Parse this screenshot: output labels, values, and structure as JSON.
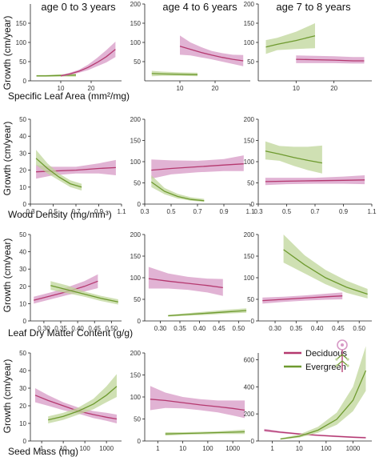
{
  "colors": {
    "deciduous": "#b5396f",
    "deciduous_fill": "#d79ac6",
    "evergreen": "#6e9a2f",
    "evergreen_fill": "#bfd69a"
  },
  "figure": {
    "column_titles": [
      "age 0 to 3 years",
      "age 4 to 6 years",
      "age 7 to 8 years"
    ],
    "y_axis_label": "Growth (cm/year)",
    "row_x_labels": [
      "Specific Leaf Area (mm²/mg)",
      "Wood Density (mg/mm³)",
      "Leaf Dry Matter Content (g/g)",
      "Seed Mass (mg)"
    ],
    "legend": {
      "position": "inside bottom-right panel, top-left",
      "items": [
        {
          "label": "Deciduous",
          "color": "#b5396f"
        },
        {
          "label": "Evergreen",
          "color": "#6e9a2f"
        }
      ],
      "icon": "tree-icon"
    }
  },
  "chart_data": [
    {
      "type": "line",
      "row": 0,
      "col": 0,
      "xlim": [
        0,
        30
      ],
      "ylim": [
        0,
        200
      ],
      "yticks": [
        0,
        50,
        100,
        150
      ],
      "xticks": [
        10,
        20
      ],
      "xtick_labels": [
        "10",
        "20"
      ],
      "grid": false,
      "series": [
        {
          "name": "Evergreen",
          "x": [
            2,
            5,
            10,
            15
          ],
          "y": [
            13,
            13,
            14,
            15
          ],
          "lower": [
            11,
            11,
            11,
            11
          ],
          "upper": [
            15,
            15,
            17,
            19
          ]
        },
        {
          "name": "Deciduous",
          "x": [
            10,
            13,
            16,
            19,
            22,
            25,
            28
          ],
          "y": [
            13,
            18,
            25,
            35,
            48,
            63,
            82
          ],
          "lower": [
            11,
            15,
            21,
            28,
            38,
            48,
            62
          ],
          "upper": [
            15,
            21,
            29,
            42,
            60,
            80,
            102
          ]
        }
      ]
    },
    {
      "type": "line",
      "row": 0,
      "col": 1,
      "xlim": [
        0,
        30
      ],
      "ylim": [
        0,
        200
      ],
      "yticks": [
        50,
        100,
        150,
        200
      ],
      "xticks": [
        10,
        20
      ],
      "xtick_labels": [
        "10",
        "20"
      ],
      "grid": false,
      "series": [
        {
          "name": "Deciduous",
          "x": [
            10,
            13,
            16,
            19,
            22,
            25,
            28
          ],
          "y": [
            90,
            82,
            74,
            67,
            61,
            56,
            52
          ],
          "lower": [
            68,
            66,
            61,
            56,
            50,
            44,
            38
          ],
          "upper": [
            118,
            100,
            88,
            78,
            72,
            68,
            67
          ]
        },
        {
          "name": "Evergreen",
          "x": [
            2,
            5,
            10,
            15
          ],
          "y": [
            19,
            18,
            17,
            16
          ],
          "lower": [
            12,
            13,
            13,
            12
          ],
          "upper": [
            26,
            24,
            22,
            21
          ]
        }
      ]
    },
    {
      "type": "line",
      "row": 0,
      "col": 2,
      "xlim": [
        0,
        30
      ],
      "ylim": [
        0,
        200
      ],
      "yticks": [
        50,
        100,
        150,
        200
      ],
      "xticks": [
        10,
        20
      ],
      "xtick_labels": [
        "10",
        "20"
      ],
      "grid": false,
      "series": [
        {
          "name": "Evergreen",
          "x": [
            2,
            5,
            10,
            15
          ],
          "y": [
            88,
            95,
            105,
            117
          ],
          "lower": [
            70,
            80,
            83,
            85
          ],
          "upper": [
            106,
            112,
            128,
            150
          ]
        },
        {
          "name": "Deciduous",
          "x": [
            10,
            15,
            20,
            25,
            28
          ],
          "y": [
            56,
            55,
            54,
            52,
            52
          ],
          "lower": [
            46,
            46,
            46,
            45,
            45
          ],
          "upper": [
            66,
            65,
            64,
            62,
            62
          ]
        }
      ]
    },
    {
      "type": "line",
      "row": 1,
      "col": 0,
      "xlim": [
        0.3,
        1.1
      ],
      "ylim": [
        0,
        50
      ],
      "yticks": [
        0,
        10,
        20,
        30,
        40,
        50
      ],
      "xticks": [
        0.3,
        0.5,
        0.7,
        0.9,
        1.1
      ],
      "xtick_labels": [
        "0.3",
        "0.5",
        "0.7",
        "0.9",
        "1.1"
      ],
      "grid": false,
      "series": [
        {
          "name": "Deciduous",
          "x": [
            0.35,
            0.5,
            0.7,
            0.9,
            1.05
          ],
          "y": [
            19,
            19.5,
            20,
            21,
            21.5
          ],
          "lower": [
            15,
            17,
            18,
            18,
            17
          ],
          "upper": [
            23,
            22,
            22,
            24,
            26
          ]
        },
        {
          "name": "Evergreen",
          "x": [
            0.35,
            0.45,
            0.55,
            0.65,
            0.75
          ],
          "y": [
            27,
            21,
            16,
            12,
            10
          ],
          "lower": [
            23,
            18,
            14,
            10,
            8
          ],
          "upper": [
            32,
            24,
            18,
            14,
            12
          ]
        }
      ]
    },
    {
      "type": "line",
      "row": 1,
      "col": 1,
      "xlim": [
        0.3,
        1.1
      ],
      "ylim": [
        0,
        200
      ],
      "yticks": [
        0,
        50,
        100,
        150,
        200
      ],
      "xticks": [
        0.3,
        0.5,
        0.7,
        0.9,
        1.1
      ],
      "xtick_labels": [
        "0.3",
        "0.5",
        "0.7",
        "0.9",
        "1.1"
      ],
      "grid": false,
      "series": [
        {
          "name": "Deciduous",
          "x": [
            0.35,
            0.5,
            0.7,
            0.9,
            1.05
          ],
          "y": [
            80,
            84,
            88,
            92,
            95
          ],
          "lower": [
            60,
            70,
            75,
            78,
            78
          ],
          "upper": [
            105,
            103,
            102,
            106,
            115
          ]
        },
        {
          "name": "Evergreen",
          "x": [
            0.35,
            0.45,
            0.55,
            0.65,
            0.75
          ],
          "y": [
            52,
            30,
            18,
            11,
            8
          ],
          "lower": [
            40,
            23,
            13,
            8,
            5
          ],
          "upper": [
            68,
            38,
            24,
            16,
            12
          ]
        }
      ]
    },
    {
      "type": "line",
      "row": 1,
      "col": 2,
      "xlim": [
        0.3,
        1.1
      ],
      "ylim": [
        0,
        200
      ],
      "yticks": [
        0,
        50,
        100,
        150,
        200
      ],
      "xticks": [
        0.3,
        0.5,
        0.7,
        0.9,
        1.1
      ],
      "xtick_labels": [
        "0.3",
        "0.5",
        "0.7",
        "0.9",
        "1.1"
      ],
      "grid": false,
      "series": [
        {
          "name": "Evergreen",
          "x": [
            0.35,
            0.45,
            0.55,
            0.65,
            0.75
          ],
          "y": [
            125,
            118,
            110,
            103,
            97
          ],
          "lower": [
            105,
            102,
            90,
            80,
            72
          ],
          "upper": [
            148,
            137,
            135,
            135,
            138
          ]
        },
        {
          "name": "Deciduous",
          "x": [
            0.35,
            0.5,
            0.7,
            0.9,
            1.05
          ],
          "y": [
            53,
            54,
            55,
            56,
            57
          ],
          "lower": [
            45,
            47,
            48,
            48,
            47
          ],
          "upper": [
            62,
            62,
            62,
            65,
            68
          ]
        }
      ]
    },
    {
      "type": "line",
      "row": 2,
      "col": 0,
      "xlim": [
        0.26,
        0.53
      ],
      "ylim": [
        0,
        50
      ],
      "yticks": [
        0,
        10,
        20,
        30,
        40,
        50
      ],
      "xticks": [
        0.3,
        0.35,
        0.4,
        0.45,
        0.5
      ],
      "xtick_labels": [
        "0.30",
        "0.35",
        "0.40",
        "0.45",
        "0.50"
      ],
      "grid": false,
      "series": [
        {
          "name": "Deciduous",
          "x": [
            0.27,
            0.32,
            0.37,
            0.42,
            0.46
          ],
          "y": [
            12,
            14.5,
            17,
            20,
            23
          ],
          "lower": [
            10,
            12.5,
            15,
            17,
            19
          ],
          "upper": [
            14,
            16.5,
            19.5,
            23,
            27
          ]
        },
        {
          "name": "Evergreen",
          "x": [
            0.32,
            0.37,
            0.42,
            0.47,
            0.52
          ],
          "y": [
            20.5,
            18,
            15.5,
            13,
            11
          ],
          "lower": [
            18,
            16,
            14,
            11.5,
            9.5
          ],
          "upper": [
            23,
            20.5,
            17,
            14.5,
            12.5
          ]
        }
      ]
    },
    {
      "type": "line",
      "row": 2,
      "col": 1,
      "xlim": [
        0.26,
        0.53
      ],
      "ylim": [
        0,
        200
      ],
      "yticks": [
        0,
        50,
        100,
        150,
        200
      ],
      "xticks": [
        0.3,
        0.35,
        0.4,
        0.45,
        0.5
      ],
      "xtick_labels": [
        "0.30",
        "0.35",
        "0.40",
        "0.45",
        "0.50"
      ],
      "grid": false,
      "series": [
        {
          "name": "Deciduous",
          "x": [
            0.27,
            0.32,
            0.37,
            0.42,
            0.46
          ],
          "y": [
            98,
            92,
            87,
            82,
            77
          ],
          "lower": [
            75,
            75,
            72,
            66,
            58
          ],
          "upper": [
            125,
            110,
            102,
            98,
            97
          ]
        },
        {
          "name": "Evergreen",
          "x": [
            0.32,
            0.37,
            0.42,
            0.47,
            0.52
          ],
          "y": [
            12,
            15,
            18,
            21,
            24
          ],
          "lower": [
            10,
            12,
            14,
            17,
            19
          ],
          "upper": [
            14,
            18,
            22,
            26,
            29
          ]
        }
      ]
    },
    {
      "type": "line",
      "row": 2,
      "col": 2,
      "xlim": [
        0.26,
        0.53
      ],
      "ylim": [
        0,
        200
      ],
      "yticks": [
        0,
        50,
        100,
        150,
        200
      ],
      "xticks": [
        0.3,
        0.35,
        0.4,
        0.45,
        0.5
      ],
      "xtick_labels": [
        "0.30",
        "0.35",
        "0.40",
        "0.45",
        "0.50"
      ],
      "grid": false,
      "series": [
        {
          "name": "Evergreen",
          "x": [
            0.32,
            0.37,
            0.42,
            0.47,
            0.52
          ],
          "y": [
            165,
            130,
            100,
            78,
            62
          ],
          "lower": [
            135,
            110,
            85,
            65,
            52
          ],
          "upper": [
            200,
            152,
            118,
            93,
            74
          ]
        },
        {
          "name": "Deciduous",
          "x": [
            0.27,
            0.32,
            0.37,
            0.42,
            0.46
          ],
          "y": [
            47,
            50,
            53,
            56,
            58
          ],
          "lower": [
            40,
            44,
            47,
            49,
            50
          ],
          "upper": [
            54,
            56,
            59,
            63,
            66
          ]
        }
      ]
    },
    {
      "type": "line",
      "row": 3,
      "col": 0,
      "xscale": "log",
      "xlim": [
        0.3,
        5000
      ],
      "ylim": [
        0,
        50
      ],
      "yticks": [
        0,
        10,
        20,
        30,
        40,
        50
      ],
      "xticks": [
        1,
        10,
        100,
        1000
      ],
      "xtick_labels": [
        "1",
        "10",
        "100",
        "1000"
      ],
      "grid": false,
      "series": [
        {
          "name": "Deciduous",
          "x": [
            0.5,
            2,
            10,
            50,
            250,
            1000,
            3000
          ],
          "y": [
            26,
            23,
            20,
            17,
            15,
            13.5,
            12.5
          ],
          "lower": [
            22,
            20,
            17.5,
            15.5,
            13,
            11.5,
            10
          ],
          "upper": [
            30,
            26,
            22,
            19,
            17,
            16,
            15
          ]
        },
        {
          "name": "Evergreen",
          "x": [
            2,
            10,
            50,
            250,
            1000,
            3000
          ],
          "y": [
            12,
            14,
            17,
            21,
            26,
            31
          ],
          "lower": [
            10,
            12,
            15,
            18,
            22,
            25
          ],
          "upper": [
            14,
            16,
            19,
            24,
            31,
            38
          ]
        }
      ]
    },
    {
      "type": "line",
      "row": 3,
      "col": 1,
      "xscale": "log",
      "xlim": [
        0.3,
        5000
      ],
      "ylim": [
        0,
        200
      ],
      "yticks": [
        0,
        50,
        100,
        150,
        200
      ],
      "xticks": [
        1,
        10,
        100,
        1000
      ],
      "xtick_labels": [
        "1",
        "10",
        "100",
        "1000"
      ],
      "grid": false,
      "series": [
        {
          "name": "Deciduous",
          "x": [
            0.5,
            2,
            10,
            50,
            250,
            1000,
            3000
          ],
          "y": [
            95,
            92,
            87,
            82,
            78,
            74,
            70
          ],
          "lower": [
            70,
            75,
            74,
            70,
            65,
            58,
            52
          ],
          "upper": [
            125,
            110,
            100,
            95,
            92,
            92,
            92
          ]
        },
        {
          "name": "Evergreen",
          "x": [
            2,
            10,
            50,
            250,
            1000,
            3000
          ],
          "y": [
            16,
            17,
            18,
            19,
            20,
            21
          ],
          "lower": [
            12,
            14,
            15,
            16,
            16,
            16
          ],
          "upper": [
            20,
            20,
            21,
            22,
            24,
            26
          ]
        }
      ]
    },
    {
      "type": "line",
      "row": 3,
      "col": 2,
      "xscale": "log",
      "xlim": [
        0.3,
        5000
      ],
      "ylim": [
        0,
        650
      ],
      "yticks": [
        0,
        200,
        400,
        600
      ],
      "xticks": [
        1,
        10,
        100,
        1000
      ],
      "xtick_labels": [
        "1",
        "10",
        "100",
        "1000"
      ],
      "grid": false,
      "series": [
        {
          "name": "Deciduous",
          "x": [
            0.5,
            2,
            10,
            50,
            250,
            1000,
            3000
          ],
          "y": [
            80,
            65,
            52,
            42,
            34,
            28,
            24
          ],
          "lower": [
            70,
            58,
            46,
            36,
            28,
            22,
            18
          ],
          "upper": [
            90,
            72,
            58,
            48,
            40,
            34,
            30
          ]
        },
        {
          "name": "Evergreen",
          "x": [
            2,
            10,
            50,
            250,
            1000,
            3000
          ],
          "y": [
            15,
            35,
            80,
            160,
            300,
            520
          ],
          "lower": [
            10,
            25,
            60,
            120,
            220,
            370
          ],
          "upper": [
            20,
            48,
            105,
            210,
            400,
            700
          ]
        }
      ]
    }
  ]
}
